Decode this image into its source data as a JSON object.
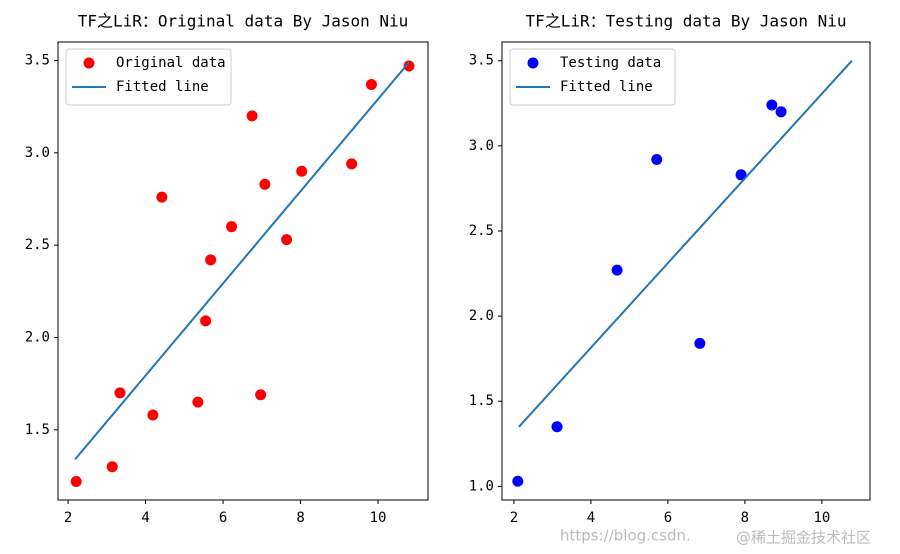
{
  "chart_data": [
    {
      "type": "scatter",
      "title": "TF之LiR：Original data By Jason Niu",
      "series": [
        {
          "name": "Original data",
          "type": "scatter",
          "color": "#ff0000",
          "x": [
            2.21,
            3.14,
            3.34,
            4.19,
            4.42,
            5.35,
            5.55,
            5.68,
            6.22,
            6.75,
            6.97,
            7.08,
            7.64,
            8.03,
            9.32,
            9.83,
            10.8
          ],
          "values": [
            1.22,
            1.3,
            1.7,
            1.58,
            2.76,
            1.65,
            2.09,
            2.42,
            2.6,
            3.2,
            1.69,
            2.83,
            2.53,
            2.9,
            2.94,
            3.37,
            3.47
          ]
        },
        {
          "name": "Fitted line",
          "type": "line",
          "color": "#1f77b4",
          "x": [
            2.18,
            10.8
          ],
          "values": [
            1.34,
            3.49
          ]
        }
      ],
      "xlim": [
        1.74,
        11.29
      ],
      "xticks": [
        2,
        4,
        6,
        8,
        10
      ],
      "ylim": [
        1.12,
        3.6
      ],
      "yticks": [
        1.5,
        {
          "value": 2,
          "label": "2.0"
        },
        2.5,
        {
          "value": 3,
          "label": "3.0"
        },
        3.5
      ],
      "legend": "upper left"
    },
    {
      "type": "scatter",
      "title": "TF之LiR：Testing data By Jason Niu",
      "series": [
        {
          "name": "Testing data",
          "type": "scatter",
          "color": "#0000ff",
          "x": [
            2.1,
            3.12,
            4.68,
            5.71,
            6.83,
            7.9,
            8.7,
            8.94
          ],
          "values": [
            1.03,
            1.35,
            2.27,
            2.92,
            1.84,
            2.83,
            3.24,
            3.2
          ]
        },
        {
          "name": "Fitted line",
          "type": "line",
          "color": "#1f77b4",
          "x": [
            2.13,
            10.78
          ],
          "values": [
            1.35,
            3.5
          ]
        }
      ],
      "xlim": [
        1.69,
        11.25
      ],
      "xticks": [
        2,
        4,
        6,
        8,
        10
      ],
      "ylim": [
        0.92,
        3.61
      ],
      "yticks": [
        {
          "value": 1,
          "label": "1.0"
        },
        1.5,
        {
          "value": 2,
          "label": "2.0"
        },
        2.5,
        {
          "value": 3,
          "label": "3.0"
        },
        3.5
      ],
      "legend": "upper left"
    }
  ],
  "watermark": "https://blog.csdn.",
  "watermark_2": "@稀土掘金技术社区"
}
